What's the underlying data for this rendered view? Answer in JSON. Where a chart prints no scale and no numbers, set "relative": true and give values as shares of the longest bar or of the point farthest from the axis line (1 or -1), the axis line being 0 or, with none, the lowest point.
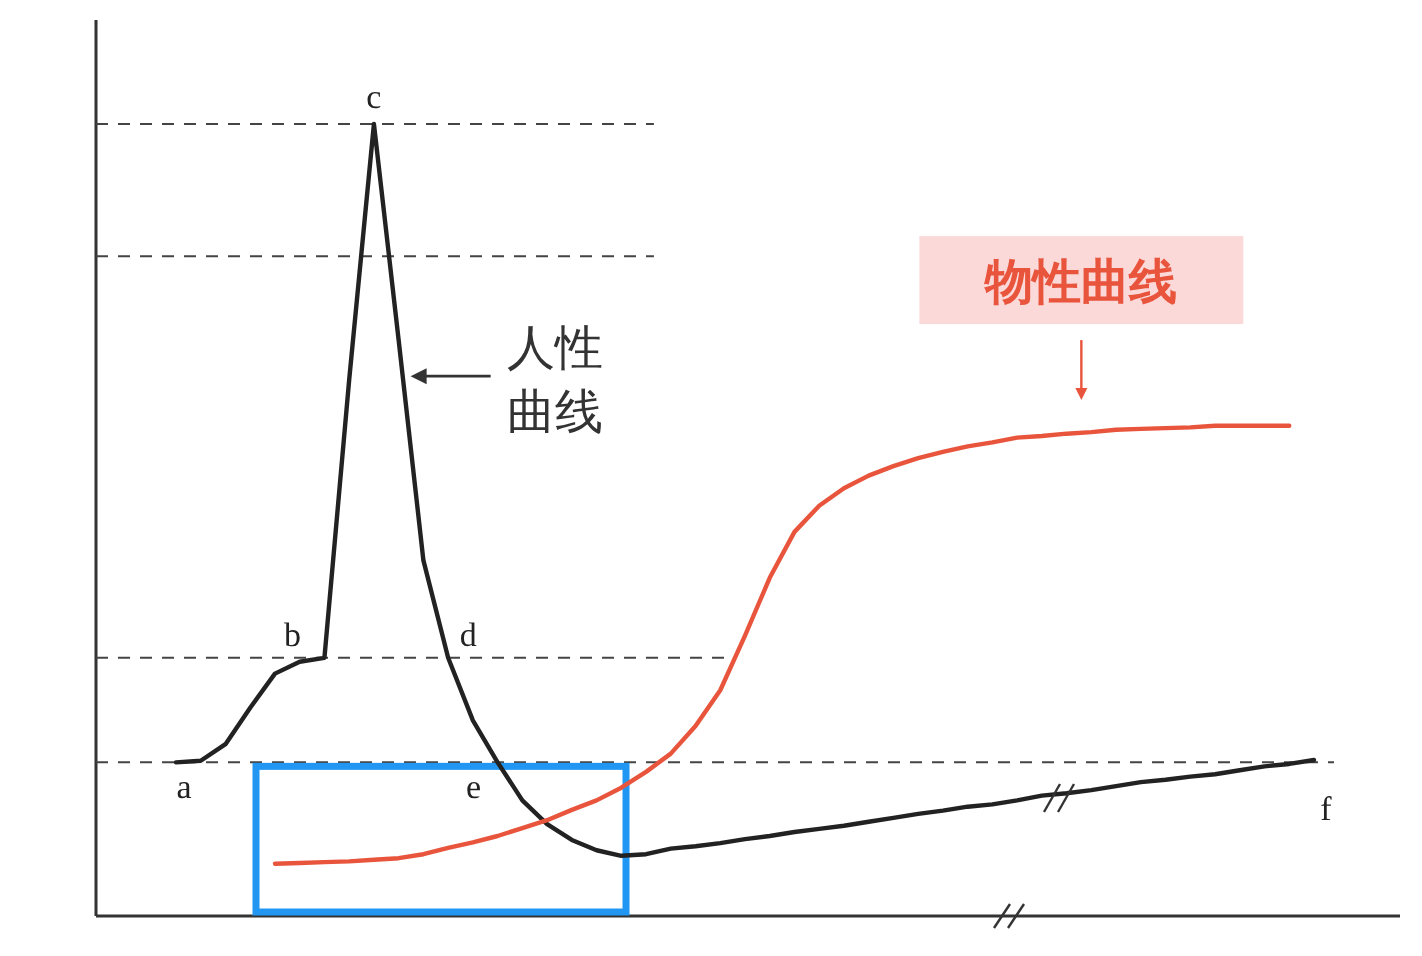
{
  "chart_data": {
    "type": "line",
    "relative": true,
    "categories": [
      null,
      null,
      null,
      null,
      null,
      null,
      null,
      null,
      null,
      null,
      null,
      null,
      null,
      null,
      null,
      null,
      null,
      null,
      null,
      null,
      null,
      null,
      null,
      null,
      null,
      null,
      null,
      null,
      null,
      null,
      null,
      null,
      null,
      null,
      null,
      null,
      null,
      null,
      null,
      null,
      null,
      null,
      null,
      null,
      null,
      null,
      null
    ],
    "series": [
      {
        "name": "人性曲线",
        "color": "#222222",
        "values": [
          0.194,
          0.196,
          0.217,
          0.263,
          0.306,
          0.321,
          0.326,
          0.677,
          1.0,
          0.727,
          0.449,
          0.326,
          0.247,
          0.194,
          0.146,
          0.116,
          0.096,
          0.083,
          0.076,
          0.078,
          0.085,
          0.088,
          0.092,
          0.097,
          0.101,
          0.106,
          0.11,
          0.114,
          0.119,
          0.124,
          0.129,
          0.133,
          0.138,
          0.141,
          0.146,
          0.152,
          0.155,
          0.159,
          0.164,
          0.169,
          0.172,
          0.176,
          0.179,
          0.184,
          0.189,
          0.192,
          0.197
        ]
      },
      {
        "name": "物性曲线",
        "color": "#e8553c",
        "values": [
          null,
          null,
          null,
          null,
          0.066,
          0.067,
          0.068,
          0.069,
          0.071,
          0.073,
          0.078,
          0.086,
          0.093,
          0.101,
          0.111,
          0.121,
          0.134,
          0.146,
          0.162,
          0.182,
          0.205,
          0.24,
          0.285,
          0.354,
          0.427,
          0.485,
          0.518,
          0.54,
          0.556,
          0.568,
          0.578,
          0.586,
          0.593,
          0.598,
          0.604,
          0.606,
          0.609,
          0.611,
          0.614,
          0.615,
          0.616,
          0.617,
          0.619,
          0.619,
          0.619,
          0.619,
          null
        ]
      }
    ],
    "ref_lines": [
      {
        "axis": "y",
        "value": 1.0,
        "line_style": "dashed",
        "color": "#444444"
      },
      {
        "axis": "y",
        "value": 0.833,
        "line_style": "dashed",
        "color": "#444444"
      },
      {
        "axis": "y",
        "value": 0.326,
        "line_style": "dashed",
        "color": "#444444"
      },
      {
        "axis": "y",
        "value": 0.194,
        "line_style": "dashed",
        "color": "#444444"
      }
    ],
    "annotations": [
      {
        "text": "a",
        "y": 0.194
      },
      {
        "text": "b",
        "y": 0.326
      },
      {
        "text": "c",
        "y": 1.0
      },
      {
        "text": "d",
        "y": 0.326
      },
      {
        "text": "e",
        "y": 0.194
      },
      {
        "text": "f",
        "y": 0.197
      }
    ]
  }
}
